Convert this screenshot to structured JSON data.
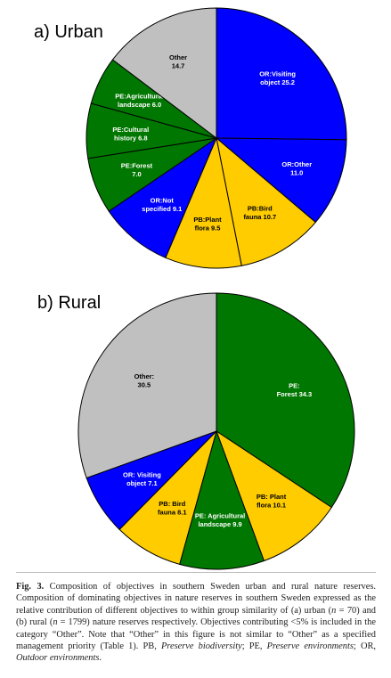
{
  "chart_data": [
    {
      "type": "pie",
      "title": "a) Urban",
      "start_angle_deg": 0,
      "direction": "clockwise",
      "slices": [
        {
          "label": "OR:Visiting object 25.2",
          "value": 25.2,
          "color": "#0000ff",
          "text_color": "#ffffff"
        },
        {
          "label": "OR:Other 11.0",
          "value": 11.0,
          "color": "#0000ff",
          "text_color": "#ffffff"
        },
        {
          "label": "PB:Bird fauna 10.7",
          "value": 10.7,
          "color": "#ffcc00",
          "text_color": "#000000"
        },
        {
          "label": "PB:Plant flora 9.5",
          "value": 9.5,
          "color": "#ffcc00",
          "text_color": "#000000"
        },
        {
          "label": "OR:Not specified 9.1",
          "value": 9.1,
          "color": "#0000ff",
          "text_color": "#ffffff"
        },
        {
          "label": "PE:Forest 7.0",
          "value": 7.0,
          "color": "#007700",
          "text_color": "#ffffff"
        },
        {
          "label": "PE:Cultural history 6.8",
          "value": 6.8,
          "color": "#007700",
          "text_color": "#ffffff"
        },
        {
          "label": "PE:Agricultural landscape 6.0",
          "value": 6.0,
          "color": "#007700",
          "text_color": "#ffffff"
        },
        {
          "label": "Other 14.7",
          "value": 14.7,
          "color": "#c0c0c0",
          "text_color": "#000000"
        }
      ]
    },
    {
      "type": "pie",
      "title": "b) Rural",
      "start_angle_deg": 0,
      "direction": "clockwise",
      "slices": [
        {
          "label": "PE: Forest 34.3",
          "value": 34.3,
          "color": "#007700",
          "text_color": "#ffffff"
        },
        {
          "label": "PB: Plant flora 10.1",
          "value": 10.1,
          "color": "#ffcc00",
          "text_color": "#000000"
        },
        {
          "label": "PE: Agricultural landscape 9.9",
          "value": 9.9,
          "color": "#007700",
          "text_color": "#ffffff"
        },
        {
          "label": "PB: Bird fauna 8.1",
          "value": 8.1,
          "color": "#ffcc00",
          "text_color": "#000000"
        },
        {
          "label": "OR: Visiting object 7.1",
          "value": 7.1,
          "color": "#0000ff",
          "text_color": "#ffffff"
        },
        {
          "label": "Other: 30.5",
          "value": 30.5,
          "color": "#c0c0c0",
          "text_color": "#000000"
        }
      ]
    }
  ],
  "caption": {
    "fig_label": "Fig. 3.",
    "text_1": " Composition of objectives in southern Sweden urban and rural nature reserves. Composition of dominating objectives in nature reserves in southern Sweden expressed as the relative contribution of different objectives to within group similarity of (a) urban (",
    "n_label_1": "n",
    "text_2": " = 70) and (b) rural (",
    "n_label_2": "n",
    "text_3": " = 1799) nature reserves respectively. Objectives contributing <5% is included in the category “Other”. Note that “Other” in this figure is not similar to “Other” as a specified management priority (Table 1). PB, ",
    "pb_name": "Preserve biodiversity",
    "text_4": "; PE, ",
    "pe_name": "Preserve environments",
    "text_5": "; OR, ",
    "or_name": "Outdoor environments",
    "text_6": "."
  }
}
